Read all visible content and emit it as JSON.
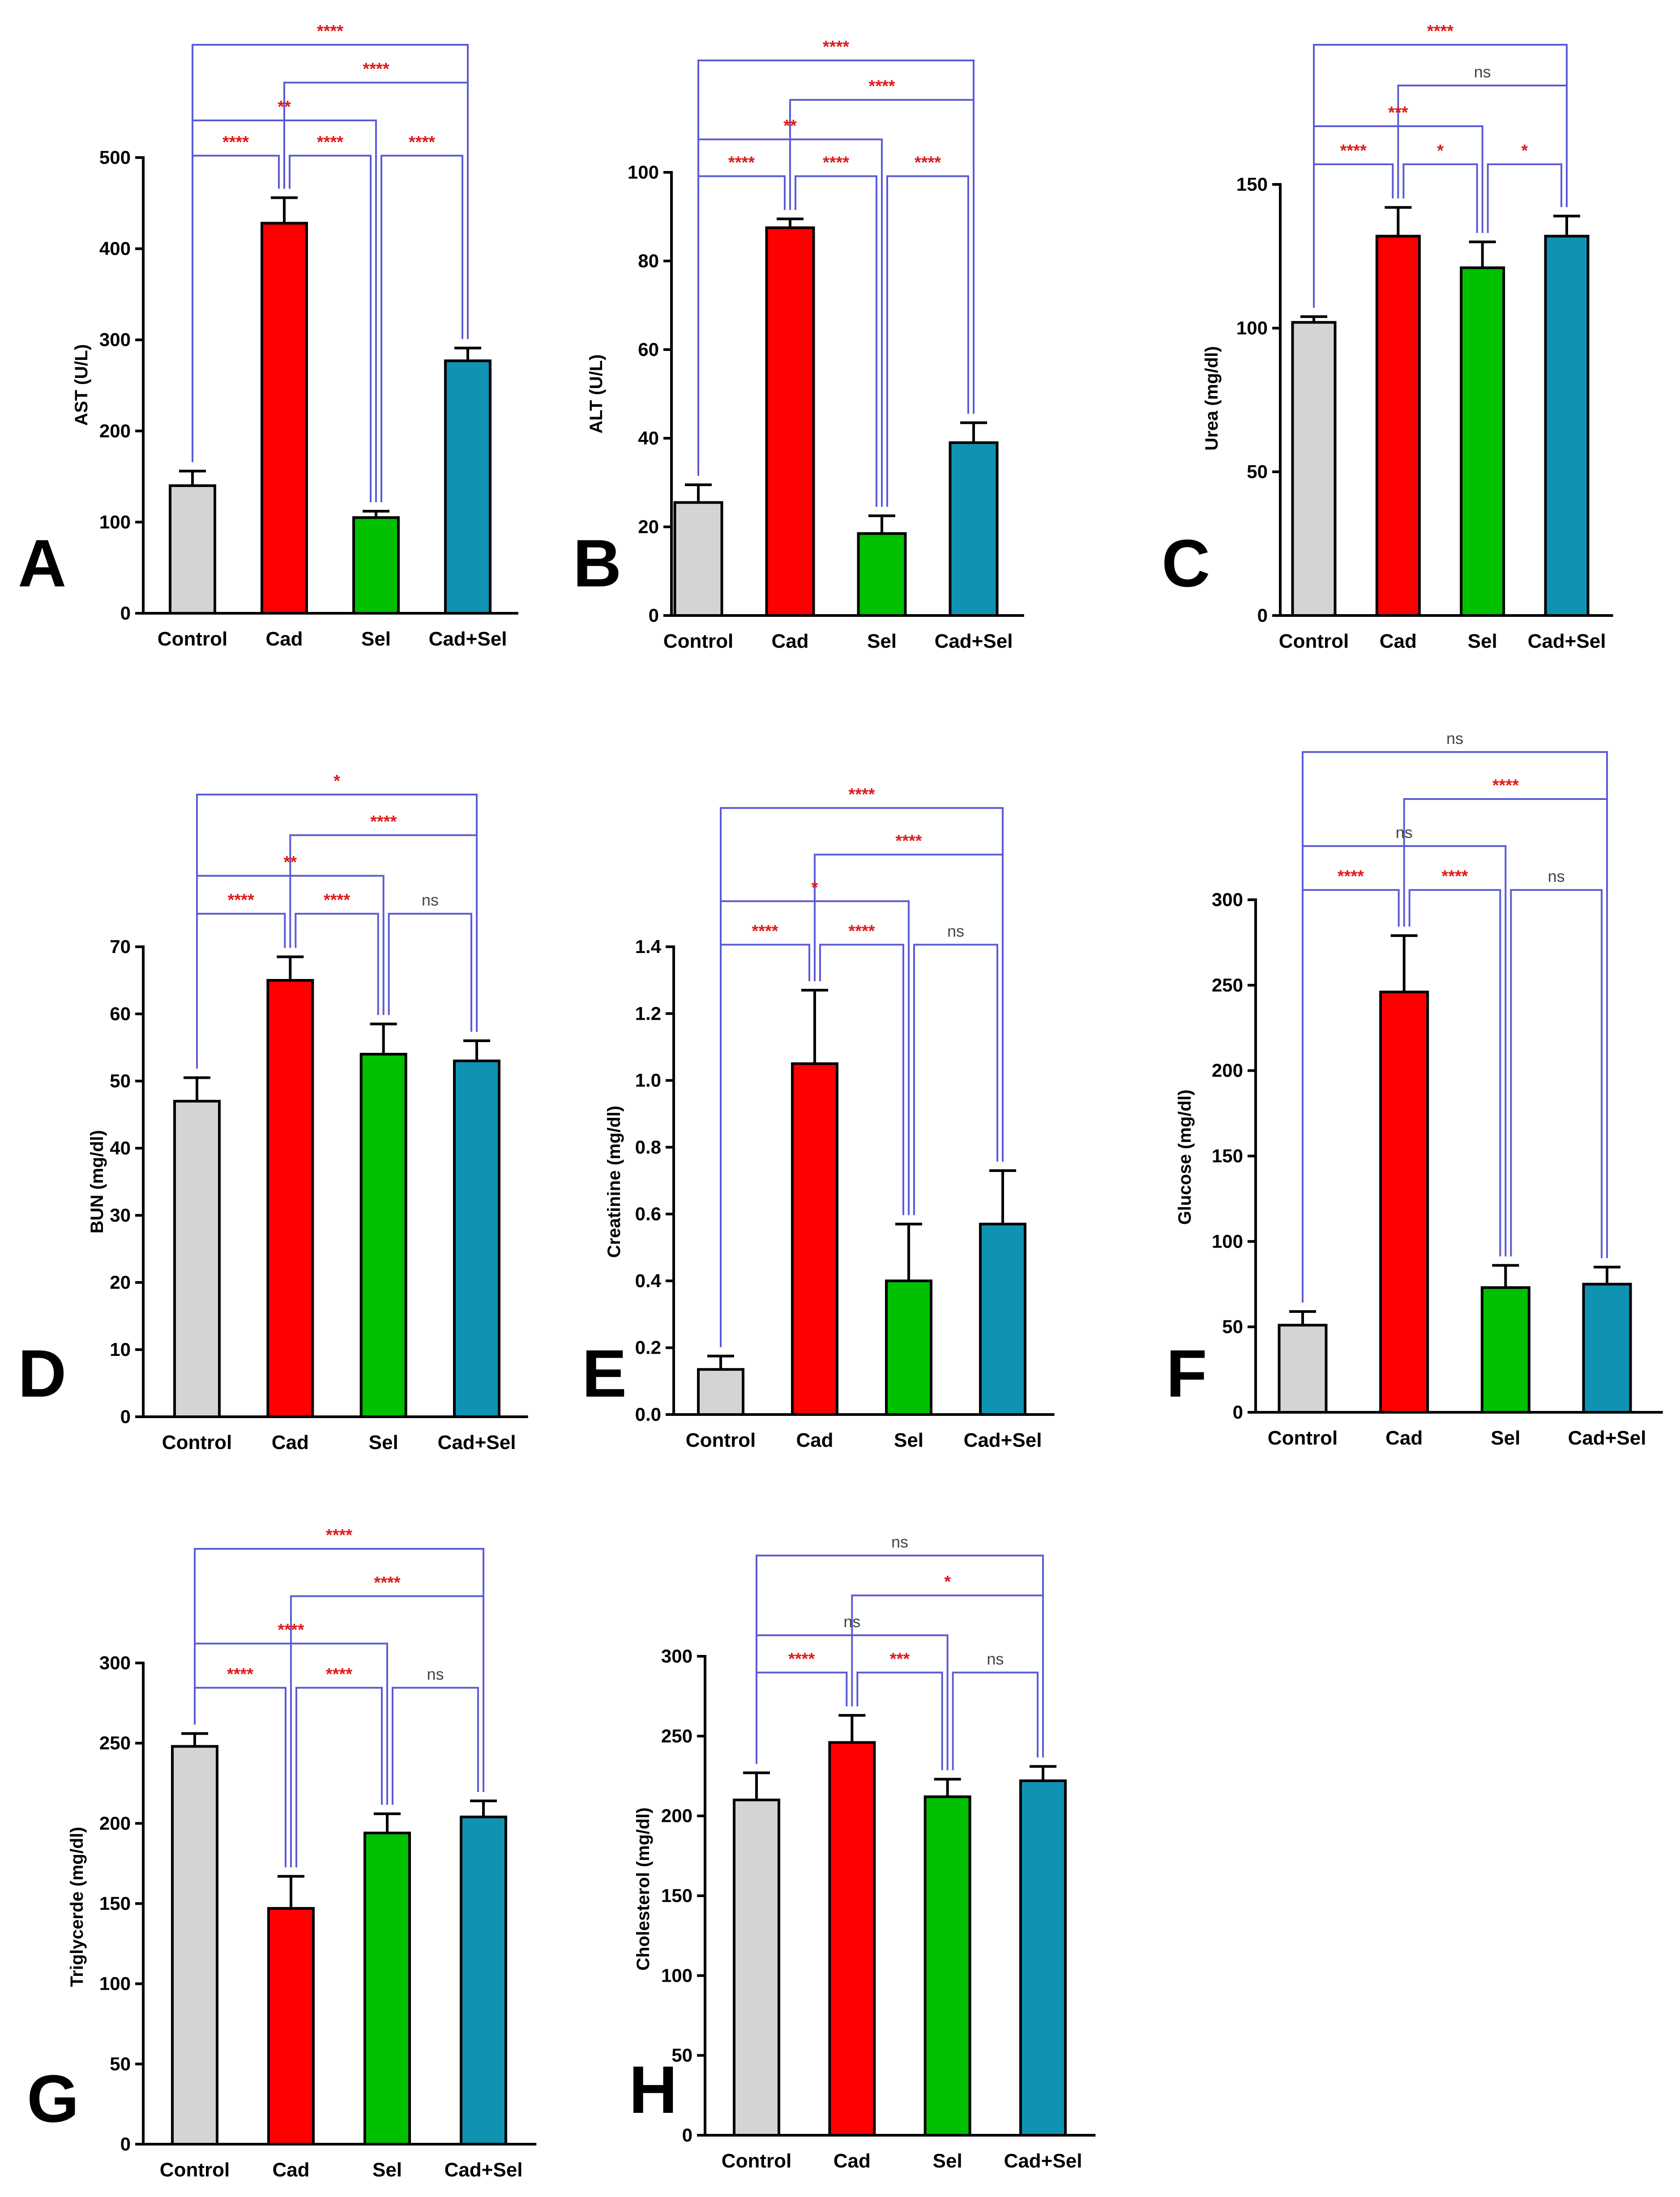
{
  "colors": {
    "Control": "#d4d4d4",
    "Cad": "#ff0000",
    "Sel": "#00c000",
    "Cad+Sel": "#1093b2",
    "bracket": "#5b5bd6",
    "significance": "#e01b1b"
  },
  "chart_data": [
    {
      "panel": "A",
      "type": "bar",
      "title": "",
      "xlabel": "",
      "ylabel": "AST (U/L)",
      "categories": [
        "Control",
        "Cad",
        "Sel",
        "Cad+Sel"
      ],
      "values": [
        140,
        428,
        105,
        277
      ],
      "errors": [
        16,
        28,
        7,
        14
      ],
      "ylim": [
        0,
        500
      ],
      "yticks": [
        0,
        100,
        200,
        300,
        400,
        500
      ],
      "comparisons": [
        {
          "a": 0,
          "b": 3,
          "label": "****"
        },
        {
          "a": 1,
          "b": 3,
          "label": "****"
        },
        {
          "a": 0,
          "b": 2,
          "label": "**"
        },
        {
          "a": 0,
          "b": 1,
          "label": "****"
        },
        {
          "a": 1,
          "b": 2,
          "label": "****"
        },
        {
          "a": 2,
          "b": 3,
          "label": "****"
        }
      ]
    },
    {
      "panel": "B",
      "type": "bar",
      "title": "",
      "xlabel": "",
      "ylabel": "ALT (U/L)",
      "categories": [
        "Control",
        "Cad",
        "Sel",
        "Cad+Sel"
      ],
      "values": [
        25.5,
        87.5,
        18.5,
        39
      ],
      "errors": [
        4,
        2,
        4,
        4.5
      ],
      "ylim": [
        0,
        100
      ],
      "yticks": [
        0,
        20,
        40,
        60,
        80,
        100
      ],
      "comparisons": [
        {
          "a": 0,
          "b": 3,
          "label": "****"
        },
        {
          "a": 1,
          "b": 3,
          "label": "****"
        },
        {
          "a": 0,
          "b": 2,
          "label": "**"
        },
        {
          "a": 0,
          "b": 1,
          "label": "****"
        },
        {
          "a": 1,
          "b": 2,
          "label": "****"
        },
        {
          "a": 2,
          "b": 3,
          "label": "****"
        }
      ]
    },
    {
      "panel": "C",
      "type": "bar",
      "title": "",
      "xlabel": "",
      "ylabel": "Urea (mg/dl)",
      "categories": [
        "Control",
        "Cad",
        "Sel",
        "Cad+Sel"
      ],
      "values": [
        102,
        132,
        121,
        132
      ],
      "errors": [
        2,
        10,
        9,
        7
      ],
      "ylim": [
        0,
        150
      ],
      "yticks": [
        0,
        50,
        100,
        150
      ],
      "comparisons": [
        {
          "a": 0,
          "b": 3,
          "label": "****"
        },
        {
          "a": 1,
          "b": 3,
          "label": "ns"
        },
        {
          "a": 0,
          "b": 2,
          "label": "***"
        },
        {
          "a": 0,
          "b": 1,
          "label": "****"
        },
        {
          "a": 1,
          "b": 2,
          "label": "*"
        },
        {
          "a": 2,
          "b": 3,
          "label": "*"
        }
      ]
    },
    {
      "panel": "D",
      "type": "bar",
      "title": "",
      "xlabel": "",
      "ylabel": "BUN (mg/dl)",
      "categories": [
        "Control",
        "Cad",
        "Sel",
        "Cad+Sel"
      ],
      "values": [
        47,
        65,
        54,
        53
      ],
      "errors": [
        3.5,
        3.5,
        4.5,
        3
      ],
      "ylim": [
        0,
        70
      ],
      "yticks": [
        0,
        10,
        20,
        30,
        40,
        50,
        60,
        70
      ],
      "comparisons": [
        {
          "a": 0,
          "b": 3,
          "label": "*"
        },
        {
          "a": 1,
          "b": 3,
          "label": "****"
        },
        {
          "a": 0,
          "b": 2,
          "label": "**"
        },
        {
          "a": 0,
          "b": 1,
          "label": "****"
        },
        {
          "a": 1,
          "b": 2,
          "label": "****"
        },
        {
          "a": 2,
          "b": 3,
          "label": "ns"
        }
      ]
    },
    {
      "panel": "E",
      "type": "bar",
      "title": "",
      "xlabel": "",
      "ylabel": "Creatinine (mg/dl)",
      "categories": [
        "Control",
        "Cad",
        "Sel",
        "Cad+Sel"
      ],
      "values": [
        0.135,
        1.05,
        0.4,
        0.57
      ],
      "errors": [
        0.04,
        0.22,
        0.17,
        0.16
      ],
      "ylim": [
        0,
        1.4
      ],
      "yticks": [
        0,
        0.2,
        0.4,
        0.6,
        0.8,
        1.0,
        1.2,
        1.4
      ],
      "yticklabels": [
        "0.0",
        "0.2",
        "0.4",
        "0.6",
        "0.8",
        "1.0",
        "1.2",
        "1.4"
      ],
      "comparisons": [
        {
          "a": 0,
          "b": 3,
          "label": "****"
        },
        {
          "a": 1,
          "b": 3,
          "label": "****"
        },
        {
          "a": 0,
          "b": 2,
          "label": "*"
        },
        {
          "a": 0,
          "b": 1,
          "label": "****"
        },
        {
          "a": 1,
          "b": 2,
          "label": "****"
        },
        {
          "a": 2,
          "b": 3,
          "label": "ns"
        }
      ]
    },
    {
      "panel": "F",
      "type": "bar",
      "title": "",
      "xlabel": "",
      "ylabel": "Glucose (mg/dl)",
      "categories": [
        "Control",
        "Cad",
        "Sel",
        "Cad+Sel"
      ],
      "values": [
        51,
        246,
        73,
        75
      ],
      "errors": [
        8,
        33,
        13,
        10
      ],
      "ylim": [
        0,
        300
      ],
      "yticks": [
        0,
        50,
        100,
        150,
        200,
        250,
        300
      ],
      "comparisons": [
        {
          "a": 0,
          "b": 3,
          "label": "ns"
        },
        {
          "a": 1,
          "b": 3,
          "label": "****"
        },
        {
          "a": 0,
          "b": 2,
          "label": "ns"
        },
        {
          "a": 0,
          "b": 1,
          "label": "****"
        },
        {
          "a": 1,
          "b": 2,
          "label": "****"
        },
        {
          "a": 2,
          "b": 3,
          "label": "ns"
        }
      ]
    },
    {
      "panel": "G",
      "type": "bar",
      "title": "",
      "xlabel": "",
      "ylabel": "Triglycerde (mg/dl)",
      "categories": [
        "Control",
        "Cad",
        "Sel",
        "Cad+Sel"
      ],
      "values": [
        248,
        147,
        194,
        204
      ],
      "errors": [
        8,
        20,
        12,
        10
      ],
      "ylim": [
        0,
        300
      ],
      "yticks": [
        0,
        50,
        100,
        150,
        200,
        250,
        300
      ],
      "comparisons": [
        {
          "a": 0,
          "b": 3,
          "label": "****"
        },
        {
          "a": 1,
          "b": 3,
          "label": "****"
        },
        {
          "a": 0,
          "b": 2,
          "label": "****"
        },
        {
          "a": 0,
          "b": 1,
          "label": "****"
        },
        {
          "a": 1,
          "b": 2,
          "label": "****"
        },
        {
          "a": 2,
          "b": 3,
          "label": "ns"
        }
      ]
    },
    {
      "panel": "H",
      "type": "bar",
      "title": "",
      "xlabel": "",
      "ylabel": "Cholesterol (mg/dl)",
      "categories": [
        "Control",
        "Cad",
        "Sel",
        "Cad+Sel"
      ],
      "values": [
        210,
        246,
        212,
        222
      ],
      "errors": [
        17,
        17,
        11,
        9
      ],
      "ylim": [
        0,
        300
      ],
      "yticks": [
        0,
        50,
        100,
        150,
        200,
        250,
        300
      ],
      "comparisons": [
        {
          "a": 0,
          "b": 3,
          "label": "ns"
        },
        {
          "a": 1,
          "b": 3,
          "label": "*"
        },
        {
          "a": 0,
          "b": 2,
          "label": "ns"
        },
        {
          "a": 0,
          "b": 1,
          "label": "****"
        },
        {
          "a": 1,
          "b": 2,
          "label": "***"
        },
        {
          "a": 2,
          "b": 3,
          "label": "ns"
        }
      ]
    }
  ]
}
